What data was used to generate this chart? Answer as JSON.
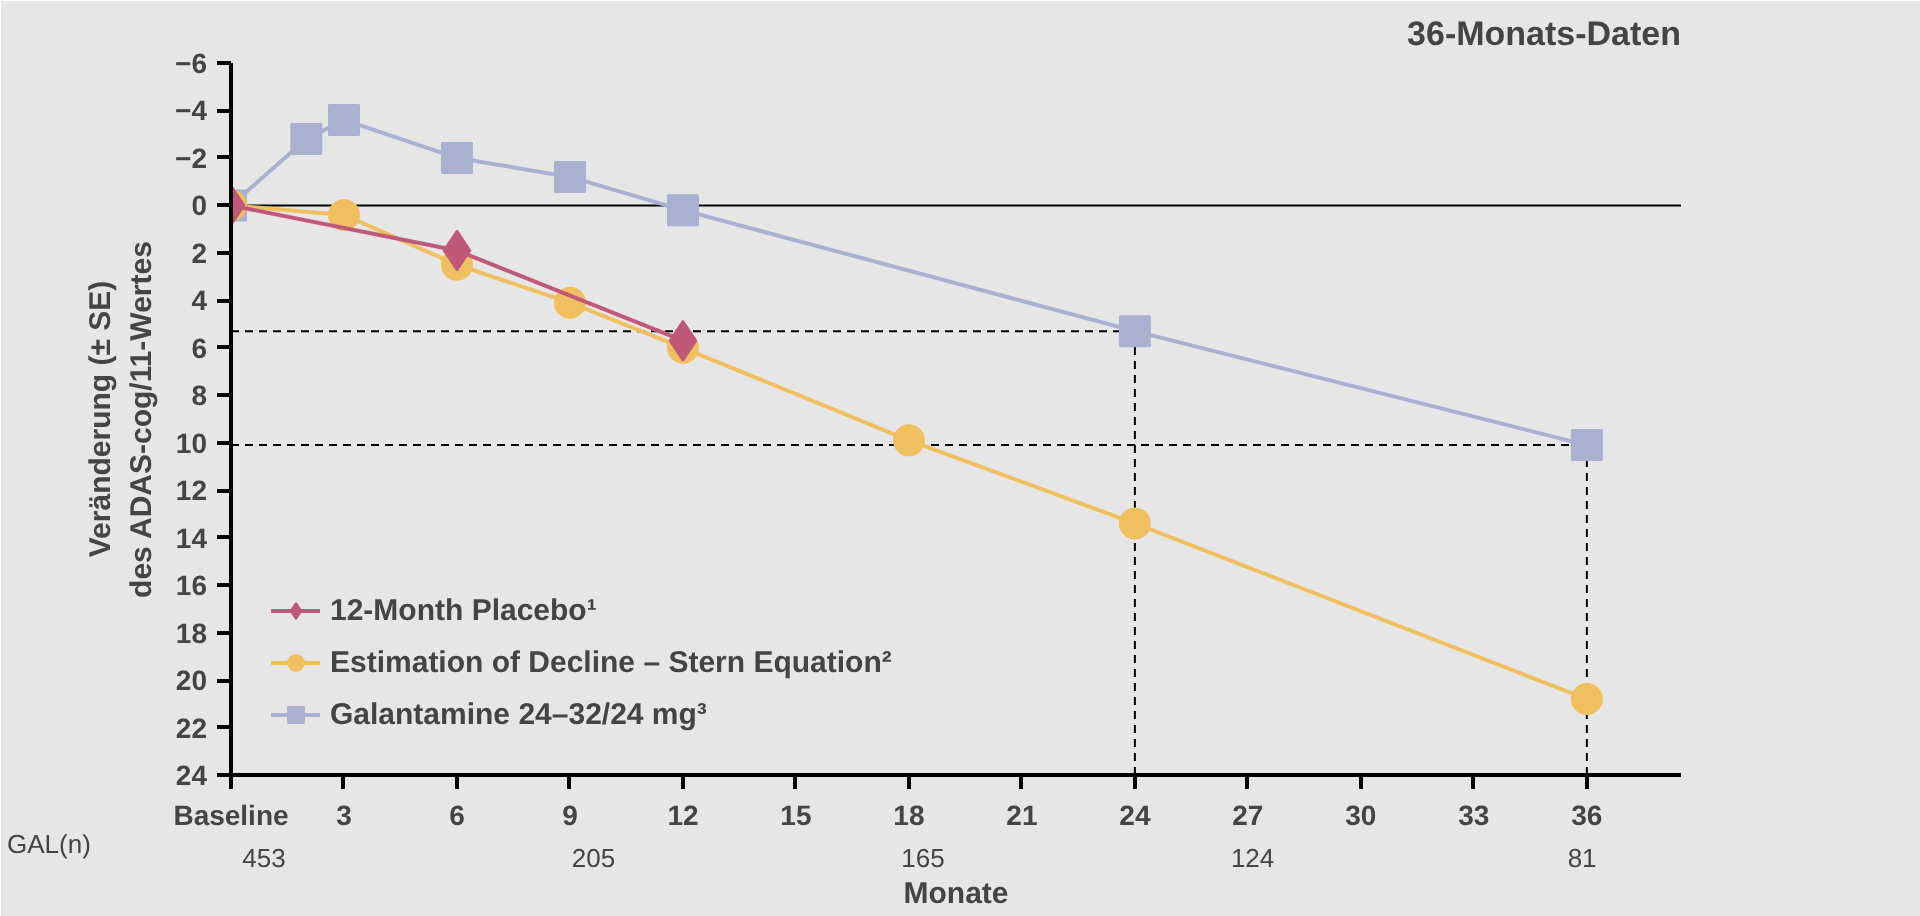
{
  "chart_data": {
    "type": "line",
    "title": "36-Monats-Daten",
    "xlabel": "Monate",
    "ylabel": "Veränderung (± SE)\ndes ADAS-cog/11-Wertes",
    "xlim": [
      0,
      38.5
    ],
    "xticks": [
      {
        "value": 0,
        "label": "Baseline"
      },
      3,
      6,
      9,
      12,
      15,
      18,
      21,
      24,
      27,
      30,
      33,
      36
    ],
    "ylim": [
      24,
      -6
    ],
    "yticks": [
      -6,
      -4,
      -2,
      0,
      2,
      4,
      6,
      8,
      10,
      12,
      14,
      16,
      18,
      20,
      22,
      24
    ],
    "series": [
      {
        "name": "12-Month Placebo¹",
        "color": "#c0587a",
        "marker": "diamond",
        "x": [
          0,
          6,
          12
        ],
        "values": [
          0,
          1.9,
          5.7
        ]
      },
      {
        "name": "Estimation of Decline – Stern Equation²",
        "color": "#f0c060",
        "marker": "circle",
        "x": [
          0,
          3,
          6,
          9,
          12,
          18,
          24,
          36
        ],
        "values": [
          0,
          0.4,
          2.5,
          4.1,
          6.0,
          9.9,
          13.4,
          20.8
        ]
      },
      {
        "name": "Galantamine 24–32/24 mg³",
        "color": "#a9b0d0",
        "marker": "square",
        "x": [
          0,
          2,
          3,
          6,
          9,
          12,
          24,
          36
        ],
        "values": [
          0,
          -2.8,
          -3.6,
          -2.0,
          -1.2,
          0.2,
          5.3,
          10.1
        ]
      }
    ],
    "ref_lines": [
      {
        "axis": "y",
        "value": 0,
        "color": "#000000",
        "line_style": "solid"
      },
      {
        "axis": "y",
        "value": 5.3,
        "color": "#000000",
        "line_style": "dashed"
      },
      {
        "axis": "y",
        "value": 10.1,
        "color": "#000000",
        "line_style": "dashed"
      },
      {
        "axis": "x",
        "value": 24,
        "color": "#000000",
        "line_style": "dashed"
      },
      {
        "axis": "x",
        "value": 36,
        "color": "#000000",
        "line_style": "dashed"
      }
    ],
    "annotations": [
      "GAL(n)",
      "453",
      "205",
      "165",
      "124",
      "81"
    ],
    "legend": "bottom left"
  }
}
